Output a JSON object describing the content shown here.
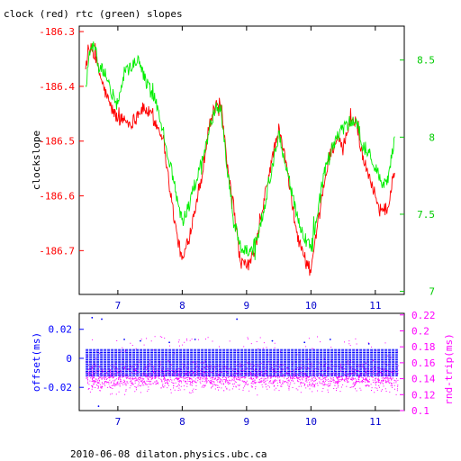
{
  "chart_data": [
    {
      "type": "line",
      "title": "clock (red) rtc (green) slopes",
      "ylabel": "clockslope",
      "xlim": [
        6.4,
        11.45
      ],
      "ylim": [
        -186.78,
        -186.29
      ],
      "y2lim": [
        6.98,
        8.72
      ],
      "x_ticks": [
        7,
        8,
        9,
        10,
        11
      ],
      "x_tick_labels": [
        "7",
        "8",
        "9",
        "10",
        "11"
      ],
      "y_ticks": [
        -186.3,
        -186.4,
        -186.5,
        -186.6,
        -186.7
      ],
      "y_tick_labels": [
        "-186.3",
        "-186.4",
        "-186.5",
        "-186.6",
        "-186.7"
      ],
      "y2_ticks": [
        8.5,
        8,
        7.5,
        7
      ],
      "y2_tick_labels": [
        "8.5",
        "8",
        "7.5",
        "7"
      ],
      "colors": {
        "clock": "#ff0000",
        "rtc": "#00ee00",
        "axis_left": "#ff0000",
        "axis_right": "#00cc00",
        "frame": "#000000"
      },
      "series": [
        {
          "axis": "left",
          "color": "#ff0000",
          "x": [
            6.5,
            6.55,
            6.6,
            6.65,
            6.7,
            6.8,
            6.9,
            7.0,
            7.1,
            7.2,
            7.3,
            7.4,
            7.5,
            7.6,
            7.7,
            7.8,
            7.9,
            8.0,
            8.1,
            8.2,
            8.3,
            8.4,
            8.5,
            8.6,
            8.7,
            8.8,
            8.9,
            9.0,
            9.1,
            9.2,
            9.3,
            9.4,
            9.5,
            9.6,
            9.7,
            9.8,
            9.9,
            10.0,
            10.1,
            10.2,
            10.3,
            10.4,
            10.5,
            10.6,
            10.7,
            10.8,
            10.9,
            11.0,
            11.1,
            11.2,
            11.3
          ],
          "values": [
            -186.36,
            -186.34,
            -186.33,
            -186.35,
            -186.37,
            -186.41,
            -186.44,
            -186.46,
            -186.46,
            -186.47,
            -186.45,
            -186.44,
            -186.45,
            -186.47,
            -186.49,
            -186.58,
            -186.66,
            -186.72,
            -186.68,
            -186.62,
            -186.57,
            -186.48,
            -186.44,
            -186.43,
            -186.55,
            -186.62,
            -186.72,
            -186.73,
            -186.71,
            -186.66,
            -186.59,
            -186.53,
            -186.48,
            -186.53,
            -186.61,
            -186.68,
            -186.71,
            -186.74,
            -186.66,
            -186.58,
            -186.52,
            -186.5,
            -186.51,
            -186.47,
            -186.46,
            -186.53,
            -186.56,
            -186.6,
            -186.63,
            -186.62,
            -186.55
          ]
        },
        {
          "axis": "right",
          "color": "#00ee00",
          "x": [
            6.5,
            6.55,
            6.6,
            6.65,
            6.7,
            6.8,
            6.9,
            7.0,
            7.1,
            7.2,
            7.3,
            7.4,
            7.5,
            7.6,
            7.7,
            7.8,
            7.9,
            8.0,
            8.1,
            8.2,
            8.3,
            8.4,
            8.5,
            8.6,
            8.7,
            8.8,
            8.9,
            9.0,
            9.1,
            9.2,
            9.3,
            9.4,
            9.5,
            9.6,
            9.7,
            9.8,
            9.9,
            10.0,
            10.1,
            10.2,
            10.3,
            10.4,
            10.5,
            10.6,
            10.7,
            10.8,
            10.9,
            11.0,
            11.1,
            11.2,
            11.3
          ],
          "values": [
            8.3,
            8.55,
            8.6,
            8.58,
            8.45,
            8.42,
            8.3,
            8.2,
            8.42,
            8.45,
            8.5,
            8.4,
            8.3,
            8.22,
            8.05,
            7.85,
            7.65,
            7.45,
            7.55,
            7.7,
            7.85,
            8.0,
            8.18,
            8.2,
            7.8,
            7.45,
            7.3,
            7.25,
            7.28,
            7.4,
            7.6,
            7.8,
            8.02,
            7.85,
            7.65,
            7.45,
            7.35,
            7.28,
            7.5,
            7.75,
            7.9,
            8.0,
            8.05,
            8.1,
            8.12,
            7.95,
            7.9,
            7.8,
            7.7,
            7.72,
            8.0
          ]
        }
      ]
    },
    {
      "type": "scatter",
      "ylabel": "offset(ms)",
      "y2label": "rnd-trip(ms)",
      "xlim": [
        6.4,
        11.45
      ],
      "ylim": [
        -0.036,
        0.031
      ],
      "y2lim": [
        0.1,
        0.222
      ],
      "x_ticks": [
        7,
        8,
        9,
        10,
        11
      ],
      "x_tick_labels": [
        "7",
        "8",
        "9",
        "10",
        "11"
      ],
      "y_ticks": [
        0.02,
        0,
        -0.02
      ],
      "y_tick_labels": [
        "0.02",
        "0",
        "-0.02"
      ],
      "y2_ticks": [
        0.22,
        0.2,
        0.18,
        0.16,
        0.14,
        0.12,
        0.1
      ],
      "y2_tick_labels": [
        "0.22",
        "0.2",
        "0.18",
        "0.16",
        "0.14",
        "0.12",
        "0.1"
      ],
      "colors": {
        "offset": "#0000ff",
        "rndtrip": "#ff00ff",
        "axis_left": "#0000ff",
        "axis_right": "#ff00ff"
      },
      "series": [
        {
          "name": "offset",
          "axis": "left",
          "color": "#0000ff",
          "band_levels": [
            0.006,
            0.005,
            0.004,
            0.003,
            0.002,
            0.001,
            0,
            -0.001,
            -0.002,
            -0.003,
            -0.004,
            -0.005,
            -0.006,
            -0.007,
            -0.008,
            -0.009,
            -0.01,
            -0.011,
            -0.012
          ],
          "outliers": [
            {
              "x": 6.6,
              "y": 0.028
            },
            {
              "x": 6.75,
              "y": 0.027
            },
            {
              "x": 6.7,
              "y": -0.033
            },
            {
              "x": 7.1,
              "y": 0.013
            },
            {
              "x": 7.35,
              "y": 0.012
            },
            {
              "x": 7.8,
              "y": 0.011
            },
            {
              "x": 8.2,
              "y": 0.013
            },
            {
              "x": 8.85,
              "y": 0.027
            },
            {
              "x": 9.4,
              "y": 0.012
            },
            {
              "x": 9.9,
              "y": 0.011
            },
            {
              "x": 10.3,
              "y": 0.013
            },
            {
              "x": 10.9,
              "y": 0.01
            }
          ]
        },
        {
          "name": "rnd-trip",
          "axis": "right",
          "color": "#ff00ff",
          "band": [
            0.118,
            0.168
          ],
          "typical": 0.142
        }
      ]
    }
  ],
  "footer": "2010-06-08 dilaton.physics.ubc.ca"
}
